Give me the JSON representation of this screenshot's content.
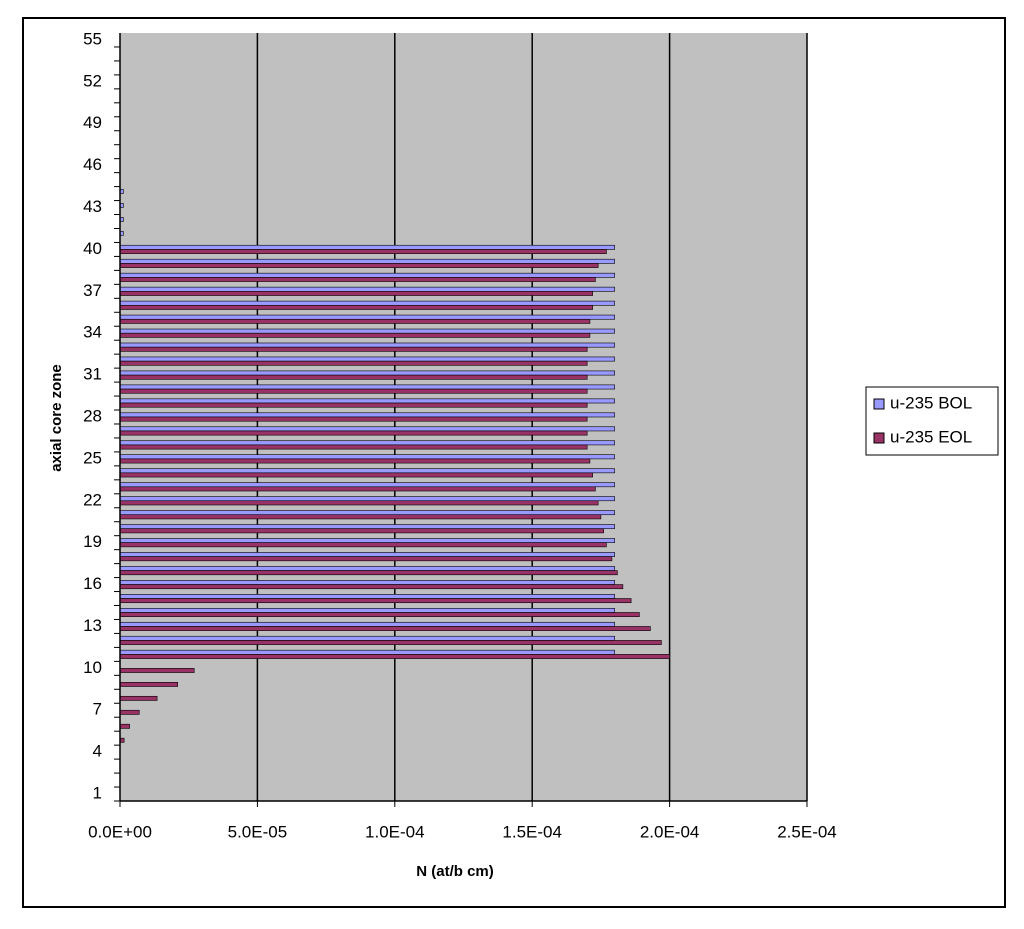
{
  "chart_data": {
    "type": "hbar",
    "y_title": "axial core zone",
    "x_title": "N (at/b cm)",
    "categories": [
      1,
      null,
      null,
      4,
      null,
      null,
      7,
      null,
      null,
      10,
      null,
      null,
      13,
      null,
      null,
      16,
      null,
      null,
      19,
      null,
      null,
      22,
      null,
      null,
      25,
      null,
      null,
      28,
      null,
      null,
      31,
      null,
      null,
      34,
      null,
      null,
      37,
      null,
      null,
      40,
      null,
      null,
      43,
      null,
      null,
      46,
      null,
      null,
      49,
      null,
      null,
      52,
      null,
      null,
      55
    ],
    "series": [
      {
        "name": "u-235 BOL",
        "color": "#9999ff",
        "values": [
          0,
          0,
          0,
          0,
          0,
          0,
          0,
          0,
          0,
          0,
          0.00018,
          0.00018,
          0.00018,
          0.00018,
          0.00018,
          0.00018,
          0.00018,
          0.00018,
          0.00018,
          0.00018,
          0.00018,
          0.00018,
          0.00018,
          0.00018,
          0.00018,
          0.00018,
          0.00018,
          0.00018,
          0.00018,
          0.00018,
          0.00018,
          0.00018,
          0.00018,
          0.00018,
          0.00018,
          0.00018,
          0.00018,
          0.00018,
          0.00018,
          0.00018,
          1.2e-06,
          1.2e-06,
          1.2e-06,
          1.2e-06,
          0,
          0,
          0,
          0,
          0,
          0,
          0,
          0,
          0,
          0,
          0
        ]
      },
      {
        "name": "u-235 EOL",
        "color": "#993366",
        "values": [
          0,
          0,
          0,
          0,
          1.5e-06,
          3.5e-06,
          7e-06,
          1.35e-05,
          2.1e-05,
          2.7e-05,
          0.0002,
          0.000197,
          0.000193,
          0.000189,
          0.000186,
          0.000183,
          0.000181,
          0.000179,
          0.000177,
          0.000176,
          0.000175,
          0.000174,
          0.000173,
          0.000172,
          0.000171,
          0.00017,
          0.00017,
          0.00017,
          0.00017,
          0.00017,
          0.00017,
          0.00017,
          0.00017,
          0.000171,
          0.000171,
          0.000172,
          0.000172,
          0.000173,
          0.000174,
          0.000177,
          0,
          0,
          0,
          0,
          0,
          0,
          0,
          0,
          0,
          0,
          0,
          0,
          0,
          0,
          0
        ]
      }
    ],
    "xlim": [
      0,
      0.00025
    ],
    "xticks": [
      {
        "value": 0,
        "label": "0.0E+00"
      },
      {
        "value": 5e-05,
        "label": "5.0E-05"
      },
      {
        "value": 0.0001,
        "label": "1.0E-04"
      },
      {
        "value": 0.00015,
        "label": "1.5E-04"
      },
      {
        "value": 0.0002,
        "label": "2.0E-04"
      },
      {
        "value": 0.00025,
        "label": "2.5E-04"
      }
    ],
    "grid": true,
    "legend": "right"
  }
}
